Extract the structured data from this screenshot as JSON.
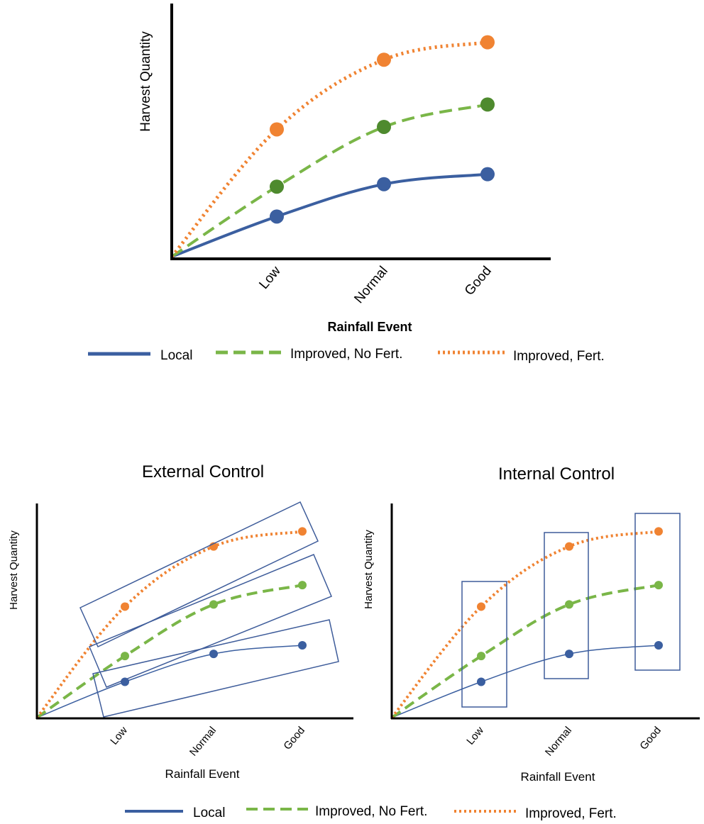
{
  "colors": {
    "local": "#3B5FA0",
    "improved_no_fert": "#7AB648",
    "improved_no_fert_dot_top": "#4E8A2E",
    "improved_fert": "#F08332",
    "box": "#3E5C9A",
    "axis": "#000000"
  },
  "legend": {
    "local": "Local",
    "improved_no_fert": "Improved, No Fert.",
    "improved_fert": "Improved, Fert."
  },
  "chart_data": [
    {
      "type": "line",
      "title": "",
      "xlabel": "Rainfall Event",
      "ylabel": "Harvest Quantity",
      "categories": [
        "Low",
        "Normal",
        "Good"
      ],
      "series": [
        {
          "name": "Local",
          "values": [
            0.17,
            0.3,
            0.34
          ],
          "style": "solid"
        },
        {
          "name": "Improved, No Fert.",
          "values": [
            0.29,
            0.53,
            0.62
          ],
          "style": "dashed"
        },
        {
          "name": "Improved, Fert.",
          "values": [
            0.52,
            0.8,
            0.87
          ],
          "style": "dotted"
        }
      ],
      "legend_position": "bottom"
    },
    {
      "type": "line",
      "title": "External Control",
      "xlabel": "Rainfall Event",
      "ylabel": "Harvest Quantity",
      "categories": [
        "Low",
        "Normal",
        "Good"
      ],
      "series": [
        {
          "name": "Local",
          "values": [
            0.17,
            0.3,
            0.34
          ],
          "style": "solid"
        },
        {
          "name": "Improved, No Fert.",
          "values": [
            0.29,
            0.53,
            0.62
          ],
          "style": "dashed"
        },
        {
          "name": "Improved, Fert.",
          "values": [
            0.52,
            0.8,
            0.87
          ],
          "style": "dotted"
        }
      ],
      "annotations": "one box around each series (grouping by variety)",
      "legend_position": "bottom"
    },
    {
      "type": "line",
      "title": "Internal Control",
      "xlabel": "Rainfall Event",
      "ylabel": "Harvest Quantity",
      "categories": [
        "Low",
        "Normal",
        "Good"
      ],
      "series": [
        {
          "name": "Local",
          "values": [
            0.17,
            0.3,
            0.34
          ],
          "style": "solid"
        },
        {
          "name": "Improved, No Fert.",
          "values": [
            0.29,
            0.53,
            0.62
          ],
          "style": "dashed"
        },
        {
          "name": "Improved, Fert.",
          "values": [
            0.52,
            0.8,
            0.87
          ],
          "style": "dotted"
        }
      ],
      "annotations": "one box around each rainfall category (grouping by rainfall)",
      "legend_position": "bottom"
    }
  ]
}
